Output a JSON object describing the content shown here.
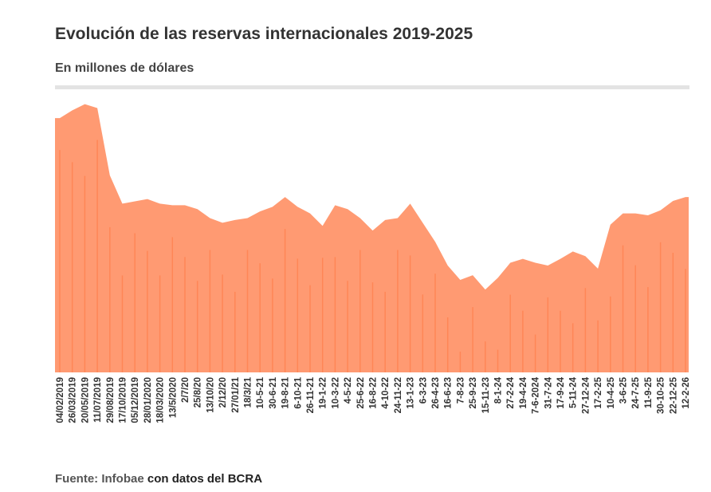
{
  "header": {
    "title": "Evolución de las reservas internacionales 2019-2025",
    "subtitle": "En millones de dólares"
  },
  "footer": {
    "source_label": "Fuente:",
    "source_name": "Infobae",
    "source_detail": "con datos del BCRA"
  },
  "colors": {
    "fill": "#FF9A72",
    "stroke": "#FF7A45"
  },
  "chart_data": {
    "type": "area",
    "title": "Evolución de las reservas internacionales 2019-2025",
    "subtitle": "En millones de dólares",
    "xlabel": "",
    "ylabel": "",
    "ylim": [
      0,
      80000
    ],
    "grid": false,
    "categories": [
      "04/02/2019",
      "26/03/2019",
      "20/05/2019",
      "11/07/2019",
      "29/08/2019",
      "17/10/2019",
      "05/12/2019",
      "28/01/2020",
      "18/03/2020",
      "13/5/2020",
      "2/7/20",
      "25/8/20",
      "13/10/20",
      "2/12/20",
      "27/01/21",
      "18/3/21",
      "10-5-21",
      "30-6-21",
      "19-8-21",
      "6-10-21",
      "26-11-21",
      "19-1-22",
      "10-3-22",
      "4-5-22",
      "25-6-22",
      "16-8-22",
      "4-10-22",
      "24-11-22",
      "13-1-23",
      "6-3-23",
      "26-4-23",
      "16-6-23",
      "7-8-23",
      "25-9-23",
      "15-11-23",
      "8-1-24",
      "27-2-24",
      "19-4-24",
      "7-6-2024",
      "31-7-24",
      "17-9-24",
      "5-11-24",
      "27-12-24",
      "17-2-25",
      "10-4-25",
      "3-6-25",
      "24-7-25",
      "11-9-25",
      "30-10-25",
      "22-12-25",
      "12-2-26"
    ],
    "values": [
      65400,
      67400,
      69000,
      68000,
      50700,
      43400,
      44000,
      44600,
      43400,
      43000,
      43000,
      42000,
      39700,
      38500,
      39200,
      39700,
      41400,
      42600,
      45100,
      42600,
      40900,
      37700,
      43000,
      42000,
      39700,
      36500,
      39200,
      39700,
      43400,
      38500,
      33600,
      27500,
      23800,
      25000,
      21300,
      24300,
      28200,
      29200,
      28200,
      27500,
      29200,
      31100,
      29900,
      26700,
      38000,
      40900,
      40900,
      40400,
      41700,
      44100,
      45100
    ]
  }
}
